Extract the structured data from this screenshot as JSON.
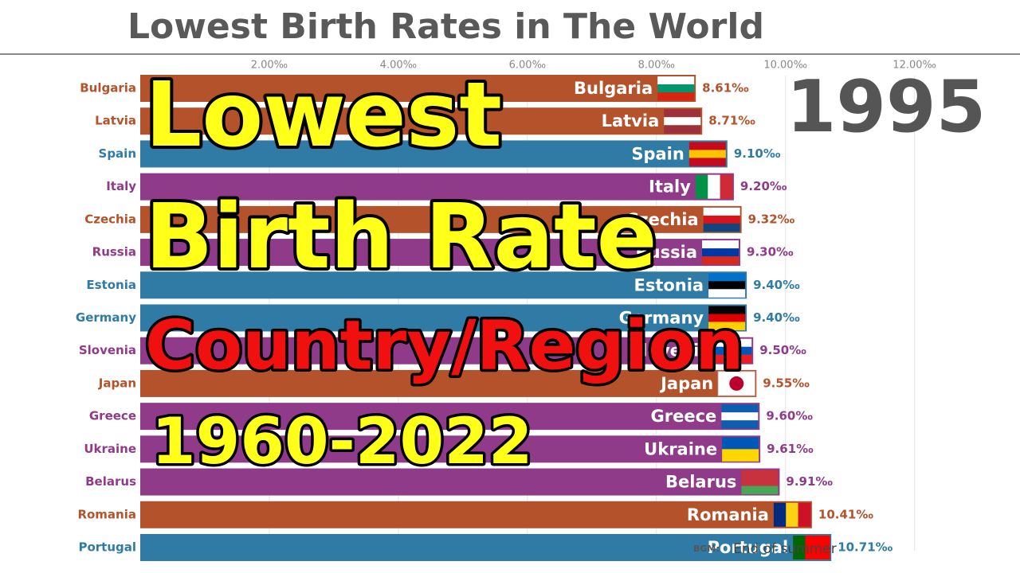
{
  "chart_data": {
    "type": "bar",
    "orientation": "horizontal",
    "title": "Lowest Birth Rates in The World",
    "year": "1995",
    "overlay": [
      "Lowest",
      "Birth Rate",
      "Country/Region",
      "1960-2022"
    ],
    "credit": [
      "BGM:",
      "End of summer"
    ],
    "categories": [
      "Bulgaria",
      "Latvia",
      "Spain",
      "Italy",
      "Czechia",
      "Russia",
      "Estonia",
      "Germany",
      "Slovenia",
      "Japan",
      "Greece",
      "Ukraine",
      "Belarus",
      "Romania",
      "Portugal"
    ],
    "values": [
      8.61,
      8.71,
      9.1,
      9.2,
      9.32,
      9.3,
      9.4,
      9.4,
      9.5,
      9.55,
      9.6,
      9.61,
      9.91,
      10.41,
      10.71
    ],
    "value_labels": [
      "8.61‰",
      "8.71‰",
      "9.10‰",
      "9.20‰",
      "9.32‰",
      "9.30‰",
      "9.40‰",
      "9.40‰",
      "9.50‰",
      "9.55‰",
      "9.60‰",
      "9.61‰",
      "9.91‰",
      "10.41‰",
      "10.71‰"
    ],
    "colors": [
      "#b4532b",
      "#b4532b",
      "#2f7ba5",
      "#8f3b8a",
      "#b4532b",
      "#8f3b8a",
      "#2f7ba5",
      "#2f7ba5",
      "#8f3b8a",
      "#b4532b",
      "#8f3b8a",
      "#8f3b8a",
      "#8f3b8a",
      "#b4532b",
      "#2f7ba5"
    ],
    "xlim": [
      0,
      13.4
    ],
    "xticks": [
      {
        "value": 2,
        "label": "2.00‰"
      },
      {
        "value": 4,
        "label": "4.00‰"
      },
      {
        "value": 6,
        "label": "6.00‰"
      },
      {
        "value": 8,
        "label": "8.00‰"
      },
      {
        "value": 10,
        "label": "10.00‰"
      },
      {
        "value": 12,
        "label": "12.00‰"
      }
    ],
    "grid": true
  }
}
